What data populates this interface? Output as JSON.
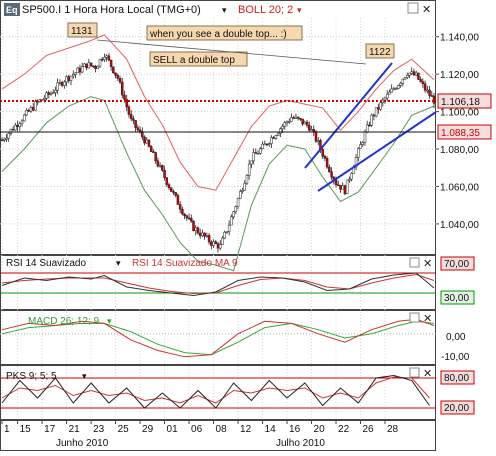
{
  "header": {
    "symbol_badge": "Eq",
    "title": "SP500.I 1 Hora Hora Local (TMG+0)",
    "title_arrow": "▾",
    "indicator": "BOLL 20; 2",
    "indicator_arrow": "▾",
    "close_glyph": "✕"
  },
  "annotations": {
    "left_peak": "1131",
    "right_peak": "1122",
    "note1": "when you see a double top... :)",
    "note2": "SELL a double top"
  },
  "price_labels": {
    "current": "1.106,18",
    "support": "1.088,35"
  },
  "panels": {
    "rsi": {
      "title": "RSI 14 Suavizado",
      "title2": "RSI 14 Suavizado MA 9",
      "levels": [
        "70,00",
        "30,00"
      ]
    },
    "macd": {
      "title": "MACD 26; 12; 9",
      "levels": [
        "0,00",
        "-10,00"
      ]
    },
    "pks": {
      "title": "PKS 9; 5; 5",
      "levels": [
        "80,00",
        "20,00"
      ]
    }
  },
  "x_axis": {
    "ticks": [
      "1",
      "15",
      "17",
      "21",
      "23",
      "25",
      "29",
      "01",
      "06",
      "08",
      "12",
      "14",
      "16",
      "20",
      "22",
      "26",
      "28"
    ],
    "months": [
      "Junho 2010",
      "Julho 2010"
    ]
  },
  "colors": {
    "candle_up": "#ffffff",
    "candle_down": "#cc0000",
    "boll_upper": "#e06060",
    "boll_lower": "#5a9a5a",
    "trend": "#2233cc",
    "rsi_line": "#333333",
    "rsi_ma": "#cc3333",
    "macd_line": "#cc3333",
    "macd_signal": "#33aa33",
    "pks_k": "#222222",
    "pks_d": "#cc3333",
    "level_red": "#cc0000",
    "level_green": "#009900",
    "label_bg": "#f5d7b0"
  },
  "chart_data": {
    "type": "candlestick",
    "title": "SP500.I 1 Hora Hora Local (TMG+0)",
    "ylim": [
      1025,
      1150
    ],
    "yticks": [
      1040,
      1060,
      1080,
      1100,
      1120,
      1140
    ],
    "ytick_labels": [
      "1.040,00",
      "1.060,00",
      "1.080,00",
      "1.100,00",
      "1.120,00",
      "1.140,00"
    ],
    "current_price": 1106.18,
    "support_level": 1088.35,
    "peaks": [
      {
        "label": "1131",
        "value": 1131
      },
      {
        "label": "1122",
        "value": 1122
      }
    ],
    "close_path": [
      [
        0,
        1085
      ],
      [
        8,
        1095
      ],
      [
        16,
        1105
      ],
      [
        22,
        1110
      ],
      [
        28,
        1117
      ],
      [
        32,
        1120
      ],
      [
        38,
        1125
      ],
      [
        42,
        1124
      ],
      [
        46,
        1131
      ],
      [
        52,
        1118
      ],
      [
        58,
        1095
      ],
      [
        64,
        1085
      ],
      [
        70,
        1072
      ],
      [
        76,
        1058
      ],
      [
        82,
        1045
      ],
      [
        86,
        1038
      ],
      [
        90,
        1034
      ],
      [
        94,
        1030
      ],
      [
        98,
        1028
      ],
      [
        102,
        1040
      ],
      [
        108,
        1060
      ],
      [
        112,
        1075
      ],
      [
        118,
        1082
      ],
      [
        124,
        1090
      ],
      [
        130,
        1097
      ],
      [
        134,
        1095
      ],
      [
        138,
        1092
      ],
      [
        142,
        1083
      ],
      [
        146,
        1072
      ],
      [
        150,
        1062
      ],
      [
        154,
        1058
      ],
      [
        158,
        1072
      ],
      [
        162,
        1085
      ],
      [
        166,
        1097
      ],
      [
        172,
        1107
      ],
      [
        178,
        1115
      ],
      [
        182,
        1121
      ],
      [
        186,
        1119
      ],
      [
        190,
        1112
      ],
      [
        194,
        1106
      ]
    ],
    "boll_upper_path": [
      [
        0,
        1112
      ],
      [
        10,
        1120
      ],
      [
        20,
        1130
      ],
      [
        30,
        1134
      ],
      [
        40,
        1138
      ],
      [
        46,
        1141
      ],
      [
        56,
        1128
      ],
      [
        64,
        1108
      ],
      [
        72,
        1093
      ],
      [
        80,
        1073
      ],
      [
        88,
        1060
      ],
      [
        96,
        1058
      ],
      [
        104,
        1075
      ],
      [
        112,
        1092
      ],
      [
        120,
        1103
      ],
      [
        128,
        1106
      ],
      [
        136,
        1104
      ],
      [
        144,
        1102
      ],
      [
        152,
        1090
      ],
      [
        160,
        1100
      ],
      [
        168,
        1112
      ],
      [
        176,
        1122
      ],
      [
        184,
        1128
      ],
      [
        194,
        1117
      ]
    ],
    "boll_lower_path": [
      [
        0,
        1068
      ],
      [
        10,
        1080
      ],
      [
        20,
        1094
      ],
      [
        30,
        1103
      ],
      [
        40,
        1108
      ],
      [
        46,
        1106
      ],
      [
        56,
        1078
      ],
      [
        64,
        1058
      ],
      [
        72,
        1045
      ],
      [
        80,
        1030
      ],
      [
        88,
        1020
      ],
      [
        96,
        1018
      ],
      [
        104,
        1015
      ],
      [
        112,
        1050
      ],
      [
        120,
        1072
      ],
      [
        128,
        1082
      ],
      [
        136,
        1080
      ],
      [
        144,
        1065
      ],
      [
        152,
        1052
      ],
      [
        160,
        1057
      ],
      [
        168,
        1070
      ],
      [
        176,
        1083
      ],
      [
        184,
        1098
      ],
      [
        194,
        1103
      ]
    ],
    "x_index_range": [
      0,
      194
    ],
    "x_tick_index": [
      0,
      7,
      18,
      29,
      40,
      51,
      62,
      73,
      84,
      95,
      106,
      117,
      128,
      139,
      150,
      161,
      172
    ],
    "rsi": {
      "ylim": [
        0,
        100
      ],
      "levels": [
        70,
        30
      ],
      "rsi": [
        [
          0,
          45
        ],
        [
          10,
          60
        ],
        [
          20,
          55
        ],
        [
          30,
          62
        ],
        [
          40,
          58
        ],
        [
          46,
          65
        ],
        [
          56,
          42
        ],
        [
          66,
          35
        ],
        [
          76,
          30
        ],
        [
          86,
          25
        ],
        [
          96,
          32
        ],
        [
          106,
          55
        ],
        [
          116,
          62
        ],
        [
          126,
          60
        ],
        [
          136,
          52
        ],
        [
          146,
          35
        ],
        [
          156,
          38
        ],
        [
          166,
          58
        ],
        [
          176,
          66
        ],
        [
          186,
          70
        ],
        [
          194,
          40
        ]
      ],
      "ma": [
        [
          0,
          50
        ],
        [
          10,
          55
        ],
        [
          20,
          58
        ],
        [
          30,
          60
        ],
        [
          40,
          60
        ],
        [
          46,
          60
        ],
        [
          56,
          50
        ],
        [
          66,
          40
        ],
        [
          76,
          33
        ],
        [
          86,
          29
        ],
        [
          96,
          30
        ],
        [
          106,
          45
        ],
        [
          116,
          57
        ],
        [
          126,
          60
        ],
        [
          136,
          55
        ],
        [
          146,
          42
        ],
        [
          156,
          38
        ],
        [
          166,
          50
        ],
        [
          176,
          60
        ],
        [
          186,
          67
        ],
        [
          194,
          55
        ]
      ]
    },
    "macd": {
      "ylim": [
        -14,
        10
      ],
      "levels": [
        0,
        -10
      ],
      "macd": [
        [
          0,
          2
        ],
        [
          12,
          5
        ],
        [
          24,
          4
        ],
        [
          36,
          6
        ],
        [
          46,
          5
        ],
        [
          58,
          -3
        ],
        [
          70,
          -8
        ],
        [
          82,
          -11
        ],
        [
          94,
          -10
        ],
        [
          106,
          0
        ],
        [
          118,
          6
        ],
        [
          130,
          5
        ],
        [
          142,
          0
        ],
        [
          154,
          -4
        ],
        [
          166,
          2
        ],
        [
          178,
          6
        ],
        [
          186,
          7
        ],
        [
          194,
          4
        ]
      ],
      "signal": [
        [
          0,
          0
        ],
        [
          12,
          3
        ],
        [
          24,
          4
        ],
        [
          36,
          5
        ],
        [
          46,
          5
        ],
        [
          58,
          1
        ],
        [
          70,
          -5
        ],
        [
          82,
          -9
        ],
        [
          94,
          -10
        ],
        [
          106,
          -4
        ],
        [
          118,
          3
        ],
        [
          130,
          5
        ],
        [
          142,
          2
        ],
        [
          154,
          -2
        ],
        [
          166,
          0
        ],
        [
          178,
          4
        ],
        [
          186,
          6
        ],
        [
          194,
          5
        ]
      ]
    },
    "pks": {
      "ylim": [
        0,
        100
      ],
      "levels": [
        80,
        20
      ],
      "k": [
        [
          0,
          30
        ],
        [
          8,
          75
        ],
        [
          16,
          40
        ],
        [
          24,
          80
        ],
        [
          32,
          30
        ],
        [
          40,
          70
        ],
        [
          48,
          30
        ],
        [
          56,
          60
        ],
        [
          64,
          20
        ],
        [
          72,
          50
        ],
        [
          80,
          20
        ],
        [
          88,
          55
        ],
        [
          96,
          20
        ],
        [
          104,
          70
        ],
        [
          112,
          35
        ],
        [
          120,
          75
        ],
        [
          128,
          40
        ],
        [
          136,
          70
        ],
        [
          144,
          25
        ],
        [
          152,
          60
        ],
        [
          160,
          30
        ],
        [
          168,
          80
        ],
        [
          176,
          85
        ],
        [
          184,
          75
        ],
        [
          192,
          25
        ]
      ],
      "d": [
        [
          0,
          40
        ],
        [
          8,
          60
        ],
        [
          16,
          55
        ],
        [
          24,
          65
        ],
        [
          32,
          45
        ],
        [
          40,
          55
        ],
        [
          48,
          45
        ],
        [
          56,
          50
        ],
        [
          64,
          35
        ],
        [
          72,
          40
        ],
        [
          80,
          30
        ],
        [
          88,
          45
        ],
        [
          96,
          30
        ],
        [
          104,
          55
        ],
        [
          112,
          50
        ],
        [
          120,
          60
        ],
        [
          128,
          55
        ],
        [
          136,
          60
        ],
        [
          144,
          40
        ],
        [
          152,
          50
        ],
        [
          160,
          40
        ],
        [
          168,
          70
        ],
        [
          176,
          82
        ],
        [
          184,
          80
        ],
        [
          192,
          40
        ]
      ]
    }
  }
}
